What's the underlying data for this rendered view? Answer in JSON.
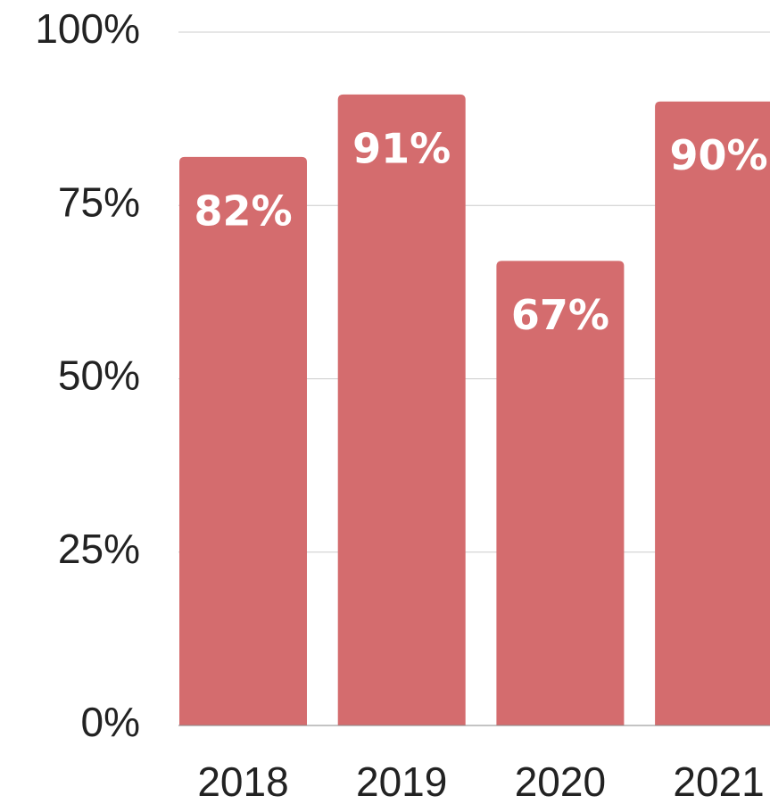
{
  "chart_data": {
    "type": "bar",
    "categories": [
      "2018",
      "2019",
      "2020",
      "2021"
    ],
    "values": [
      82,
      91,
      67,
      90
    ],
    "value_labels": [
      "82%",
      "91%",
      "67%",
      "90%"
    ],
    "color": "#d46c6e",
    "ylim": [
      0,
      100
    ],
    "yticks": [
      {
        "value": 0,
        "label": "0%"
      },
      {
        "value": 25,
        "label": "25%"
      },
      {
        "value": 50,
        "label": "50%"
      },
      {
        "value": 75,
        "label": "75%"
      },
      {
        "value": 100,
        "label": "100%"
      }
    ],
    "grid": true
  }
}
